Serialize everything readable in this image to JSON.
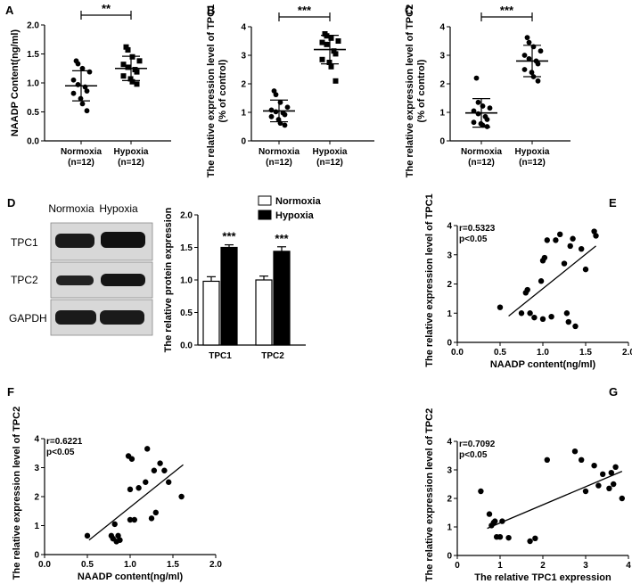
{
  "figure": {
    "panel_labels": [
      "A",
      "B",
      "C",
      "D",
      "E",
      "F",
      "G"
    ],
    "colors": {
      "ink": "#000000",
      "bar_normoxia": "#ffffff",
      "bar_hypoxia": "#000000",
      "blot_bg": "#d8d8d8",
      "band": "#1a1a1a"
    }
  },
  "blot": {
    "header": [
      "Normoxia",
      "Hypoxia"
    ],
    "rows": [
      "TPC1",
      "TPC2",
      "GAPDH"
    ]
  },
  "chart_data": [
    {
      "panel": "A",
      "type": "scatter",
      "ylabel": "NAADP Content(ng/ml)",
      "ylim": [
        0,
        2.0
      ],
      "yticks": [
        "0.0",
        "0.5",
        "1.0",
        "1.5",
        "2.0"
      ],
      "categories": [
        "Normoxia\n(n=12)",
        "Hypoxia\n(n=12)"
      ],
      "cat_line1": [
        "Normoxia",
        "Hypoxia"
      ],
      "cat_line2": [
        "(n=12)",
        "(n=12)"
      ],
      "series": [
        {
          "name": "Normoxia",
          "marker": "circle",
          "mean": 0.95,
          "sd": 0.26,
          "values": [
            1.38,
            1.33,
            1.25,
            1.19,
            1.05,
            0.97,
            0.93,
            0.86,
            0.82,
            0.73,
            0.64,
            0.52
          ]
        },
        {
          "name": "Hypoxia",
          "marker": "square",
          "mean": 1.25,
          "sd": 0.21,
          "values": [
            1.62,
            1.57,
            1.45,
            1.38,
            1.32,
            1.27,
            1.23,
            1.19,
            1.12,
            1.07,
            1.02,
            0.98
          ]
        }
      ],
      "significance": "**"
    },
    {
      "panel": "B",
      "type": "scatter",
      "ylabel": "The relative expression level of TPC1\n(% of control)",
      "ylabel_line1": "The relative expression level of TPC1",
      "ylabel_line2": "(% of control)",
      "ylim": [
        0,
        4
      ],
      "yticks": [
        "0",
        "1",
        "2",
        "3",
        "4"
      ],
      "categories": [
        "Normoxia\n(n=12)",
        "Hypoxia\n(n=12)"
      ],
      "cat_line1": [
        "Normoxia",
        "Hypoxia"
      ],
      "cat_line2": [
        "(n=12)",
        "(n=12)"
      ],
      "series": [
        {
          "name": "Normoxia",
          "marker": "circle",
          "mean": 1.05,
          "sd": 0.38,
          "values": [
            1.75,
            1.62,
            1.35,
            1.18,
            1.08,
            1.02,
            0.98,
            0.92,
            0.85,
            0.75,
            0.62,
            0.55
          ]
        },
        {
          "name": "Hypoxia",
          "marker": "square",
          "mean": 3.2,
          "sd": 0.5,
          "values": [
            3.75,
            3.68,
            3.6,
            3.5,
            3.45,
            3.38,
            3.15,
            3.05,
            2.85,
            2.75,
            2.6,
            2.1
          ]
        }
      ],
      "significance": "***"
    },
    {
      "panel": "C",
      "type": "scatter",
      "ylabel": "The relative expression level of TPC2\n(% of control)",
      "ylabel_line1": "The relative expression level of TPC2",
      "ylabel_line2": "(% of control)",
      "ylim": [
        0,
        4
      ],
      "yticks": [
        "0",
        "1",
        "2",
        "3",
        "4"
      ],
      "categories": [
        "Normoxia\n(n=12)",
        "Hypoxia\n(n=12)"
      ],
      "cat_line1": [
        "Normoxia",
        "Hypoxia"
      ],
      "cat_line2": [
        "(n=12)",
        "(n=12)"
      ],
      "series": [
        {
          "name": "Normoxia",
          "marker": "circle",
          "mean": 0.98,
          "sd": 0.5,
          "values": [
            2.2,
            1.35,
            1.22,
            1.15,
            1.05,
            0.95,
            0.85,
            0.75,
            0.65,
            0.6,
            0.55,
            0.5
          ]
        },
        {
          "name": "Hypoxia",
          "marker": "circle",
          "mean": 2.8,
          "sd": 0.55,
          "values": [
            3.62,
            3.45,
            3.3,
            3.15,
            3.0,
            2.88,
            2.8,
            2.7,
            2.5,
            2.4,
            2.25,
            2.1
          ]
        }
      ],
      "significance": "***"
    },
    {
      "panel": "D",
      "type": "bar",
      "ylabel": "The relative protein expression",
      "ylim": [
        0,
        2.0
      ],
      "yticks": [
        "0.0",
        "0.5",
        "1.0",
        "1.5",
        "2.0"
      ],
      "categories": [
        "TPC1",
        "TPC2"
      ],
      "series": [
        {
          "name": "Normoxia",
          "values": [
            0.98,
            1.0
          ],
          "errors": [
            0.07,
            0.06
          ]
        },
        {
          "name": "Hypoxia",
          "values": [
            1.5,
            1.44
          ],
          "errors": [
            0.04,
            0.07
          ]
        }
      ],
      "significance": [
        "***",
        "***"
      ]
    },
    {
      "panel": "E",
      "type": "scatter",
      "xlabel": "NAADP content(ng/ml)",
      "ylabel": "The relative expression level of TPC1",
      "xlim": [
        0,
        2.0
      ],
      "ylim": [
        0,
        4
      ],
      "xticks": [
        "0.0",
        "0.5",
        "1.0",
        "1.5",
        "2.0"
      ],
      "yticks": [
        "0",
        "1",
        "2",
        "3",
        "4"
      ],
      "r_text": "r=0.5323",
      "p_text": "p<0.05",
      "x": [
        0.5,
        0.75,
        0.8,
        0.82,
        0.85,
        0.9,
        0.98,
        1.0,
        1.0,
        1.02,
        1.05,
        1.1,
        1.15,
        1.2,
        1.25,
        1.28,
        1.3,
        1.32,
        1.35,
        1.38,
        1.45,
        1.5,
        1.6,
        1.62
      ],
      "y": [
        1.2,
        1.0,
        1.7,
        1.8,
        1.0,
        0.85,
        2.1,
        2.8,
        0.8,
        2.9,
        3.5,
        0.88,
        3.5,
        3.7,
        2.7,
        1.0,
        0.7,
        3.3,
        3.55,
        0.55,
        3.2,
        2.5,
        3.8,
        3.65
      ],
      "fit": {
        "x": [
          0.6,
          1.62
        ],
        "y": [
          0.9,
          3.3
        ]
      }
    },
    {
      "panel": "F",
      "type": "scatter",
      "xlabel": "NAADP content(ng/ml)",
      "ylabel": "The relative expression level of TPC2",
      "xlim": [
        0,
        2.0
      ],
      "ylim": [
        0,
        4
      ],
      "xticks": [
        "0.0",
        "0.5",
        "1.0",
        "1.5",
        "2.0"
      ],
      "yticks": [
        "0",
        "1",
        "2",
        "3",
        "4"
      ],
      "r_text": "r=0.6221",
      "p_text": "p<0.05",
      "x": [
        0.5,
        0.78,
        0.8,
        0.82,
        0.84,
        0.86,
        0.88,
        0.98,
        1.0,
        1.0,
        1.02,
        1.05,
        1.1,
        1.18,
        1.2,
        1.25,
        1.28,
        1.3,
        1.35,
        1.4,
        1.45,
        1.6
      ],
      "y": [
        0.65,
        0.65,
        0.55,
        1.05,
        0.45,
        0.65,
        0.5,
        3.4,
        1.2,
        2.25,
        3.3,
        1.2,
        2.3,
        2.5,
        3.65,
        1.25,
        2.9,
        1.45,
        3.15,
        2.9,
        2.5,
        2.0
      ],
      "fit": {
        "x": [
          0.52,
          1.62
        ],
        "y": [
          0.5,
          3.1
        ]
      }
    },
    {
      "panel": "G",
      "type": "scatter",
      "xlabel": "The relative TPC1 expression",
      "ylabel": "The relative expression level of TPC2",
      "xlim": [
        0,
        4
      ],
      "ylim": [
        0,
        4
      ],
      "xticks": [
        "0",
        "1",
        "2",
        "3",
        "4"
      ],
      "yticks": [
        "0",
        "1",
        "2",
        "3",
        "4"
      ],
      "r_text": "r=0.7092",
      "p_text": "p<0.05",
      "x": [
        0.55,
        0.75,
        0.8,
        0.85,
        0.88,
        0.92,
        1.0,
        1.05,
        1.2,
        1.7,
        1.82,
        2.1,
        2.75,
        2.9,
        3.0,
        3.2,
        3.3,
        3.4,
        3.55,
        3.6,
        3.65,
        3.7,
        3.85
      ],
      "y": [
        2.25,
        1.45,
        1.05,
        1.15,
        1.2,
        0.65,
        0.65,
        1.2,
        0.62,
        0.5,
        0.6,
        3.35,
        3.65,
        3.35,
        2.25,
        3.15,
        2.45,
        2.85,
        2.35,
        2.9,
        2.5,
        3.1,
        2.0
      ],
      "fit": {
        "x": [
          0.7,
          3.85
        ],
        "y": [
          0.95,
          2.95
        ]
      }
    }
  ]
}
